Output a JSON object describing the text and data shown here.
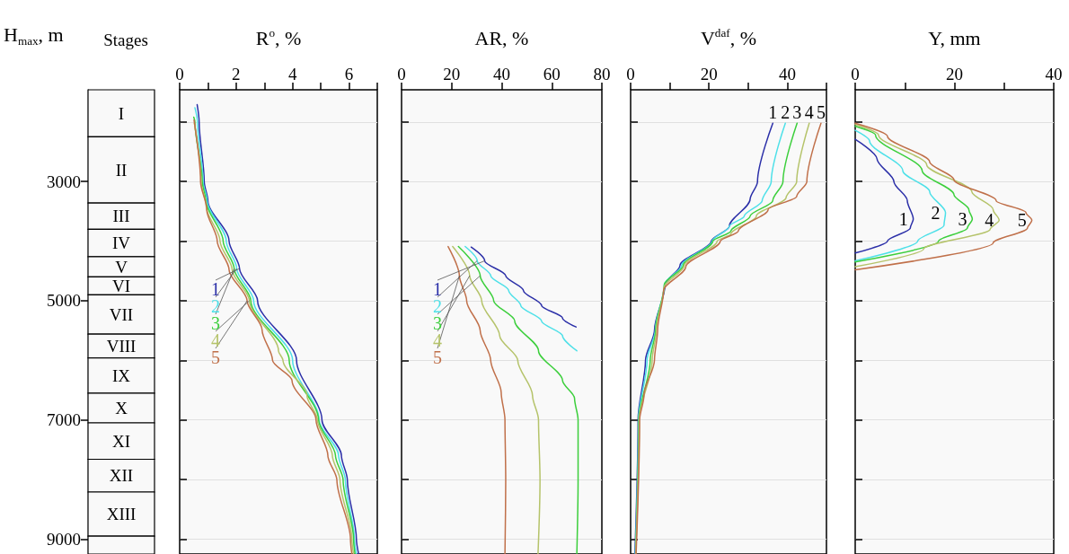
{
  "chart_data": [
    {
      "type": "bar",
      "title": "Stages",
      "ylabel": "H$_{max}$, m",
      "categories": [
        null
      ],
      "ylim": [
        9250,
        1460
      ],
      "yticks": [
        3000,
        5000,
        7000,
        9000
      ],
      "tick_labels": "y",
      "series": [
        {
          "name": "I",
          "color": "#f9f9f9",
          "values": [
            790
          ],
          "base": [
            1460
          ]
        },
        {
          "name": "II",
          "color": "#f9f9f9",
          "values": [
            1110
          ],
          "base": [
            2250
          ]
        },
        {
          "name": "III",
          "color": "#f9f9f9",
          "values": [
            440
          ],
          "base": [
            3360
          ]
        },
        {
          "name": "IV",
          "color": "#f9f9f9",
          "values": [
            460
          ],
          "base": [
            3800
          ]
        },
        {
          "name": "V",
          "color": "#f9f9f9",
          "values": [
            340
          ],
          "base": [
            4260
          ]
        },
        {
          "name": "VI",
          "color": "#f9f9f9",
          "values": [
            300
          ],
          "base": [
            4600
          ]
        },
        {
          "name": "VII",
          "color": "#f9f9f9",
          "values": [
            660
          ],
          "base": [
            4900
          ]
        },
        {
          "name": "VIII",
          "color": "#f9f9f9",
          "values": [
            400
          ],
          "base": [
            5560
          ]
        },
        {
          "name": "IX",
          "color": "#f9f9f9",
          "values": [
            590
          ],
          "base": [
            5960
          ]
        },
        {
          "name": "X",
          "color": "#f9f9f9",
          "values": [
            500
          ],
          "base": [
            6550
          ]
        },
        {
          "name": "XI",
          "color": "#f9f9f9",
          "values": [
            610
          ],
          "base": [
            7050
          ]
        },
        {
          "name": "XII",
          "color": "#f9f9f9",
          "values": [
            550
          ],
          "base": [
            7660
          ]
        },
        {
          "name": "XIII",
          "color": "#f9f9f9",
          "values": [
            740
          ],
          "base": [
            8210
          ]
        },
        {
          "color": "#f9f9f9",
          "values": [
            300
          ],
          "base": [
            8950
          ]
        }
      ]
    },
    {
      "type": "line",
      "xlabel": "R$^{o}$, %",
      "xlim": [
        0,
        7
      ],
      "xticks": [
        0,
        {
          "value": 1,
          "label": null
        },
        2,
        {
          "value": 3,
          "label": null
        },
        4,
        {
          "value": 5,
          "label": null
        },
        6,
        {
          "value": 7,
          "label": null
        }
      ],
      "ylim": [
        9250,
        1460
      ],
      "yticks": [
        2000,
        3000,
        4000,
        5000,
        6000,
        7000,
        8000,
        9000
      ],
      "tick_labels": "x",
      "grid": "y",
      "series": [
        {
          "name": "1",
          "color": "#2b2fa8",
          "x": [
            0.62,
            0.69,
            0.87,
            1.0,
            1.75,
            2.12,
            2.76,
            4.14,
            5.04,
            5.73,
            5.94,
            6.26,
            6.34
          ],
          "values": [
            1710,
            2000,
            3000,
            3320,
            4000,
            4460,
            5000,
            6000,
            7000,
            7600,
            8010,
            9000,
            9250
          ]
        },
        {
          "name": "2",
          "color": "#4de0e8",
          "x": [
            0.54,
            0.63,
            0.83,
            0.97,
            1.65,
            2.02,
            2.62,
            4.0,
            4.94,
            5.63,
            5.87,
            6.19,
            6.26
          ],
          "values": [
            1760,
            2000,
            3000,
            3320,
            4000,
            4460,
            5000,
            6000,
            7000,
            7600,
            8010,
            9000,
            9250
          ]
        },
        {
          "name": "3",
          "color": "#3ccf3c",
          "x": [
            0.5,
            0.54,
            0.8,
            0.93,
            1.54,
            1.93,
            2.52,
            3.88,
            4.92,
            5.52,
            5.79,
            6.16,
            6.21
          ],
          "values": [
            1920,
            2000,
            3000,
            3320,
            4000,
            4460,
            5000,
            6000,
            7000,
            7600,
            8010,
            9000,
            9250
          ]
        },
        {
          "name": "4",
          "color": "#b5c36a",
          "x": [
            0.52,
            0.76,
            0.94,
            1.43,
            1.86,
            2.47,
            3.5,
            3.66,
            4.51,
            4.88,
            5.41,
            5.68,
            6.1,
            6.16
          ],
          "values": [
            2020,
            3000,
            3420,
            4000,
            4480,
            5000,
            5840,
            6000,
            6590,
            7000,
            7600,
            8010,
            9000,
            9250
          ]
        },
        {
          "name": "5",
          "color": "#c0704a",
          "x": [
            0.51,
            0.74,
            0.96,
            1.33,
            1.75,
            2.39,
            2.92,
            3.29,
            3.98,
            4.83,
            5.25,
            5.57,
            6.05,
            6.1
          ],
          "values": [
            1970,
            3000,
            3470,
            4000,
            4480,
            5000,
            5490,
            6000,
            6340,
            7000,
            7600,
            8010,
            9000,
            9250
          ]
        }
      ]
    },
    {
      "type": "line",
      "xlabel": "AR, %",
      "xlim": [
        0,
        80
      ],
      "xticks": [
        0,
        20,
        40,
        60,
        80
      ],
      "ylim": [
        9250,
        1460
      ],
      "yticks": [
        2000,
        3000,
        4000,
        5000,
        6000,
        7000,
        8000,
        9000
      ],
      "tick_labels": "x",
      "grid": "y",
      "series": [
        {
          "name": "1",
          "color": "#2b2fa8",
          "x": [
            27.8,
            33.2,
            41.6,
            48.7,
            55.9,
            64.3,
            69.7
          ],
          "values": [
            4100,
            4330,
            4580,
            4830,
            5080,
            5290,
            5440
          ]
        },
        {
          "name": "2",
          "color": "#4de0e8",
          "x": [
            25.4,
            30.2,
            35.6,
            42.8,
            47.6,
            55.9,
            64.3,
            70.0
          ],
          "values": [
            4090,
            4330,
            4580,
            4830,
            5080,
            5340,
            5590,
            5840
          ]
        },
        {
          "name": "3",
          "color": "#3ccf3c",
          "x": [
            22.7,
            31.4,
            36.8,
            45.2,
            54.7,
            64.3,
            69.1,
            70.5,
            70.5,
            70.0
          ],
          "values": [
            4090,
            4580,
            5000,
            5340,
            5840,
            6340,
            6640,
            7000,
            8010,
            9250
          ]
        },
        {
          "name": "4",
          "color": "#b5c36a",
          "x": [
            20.4,
            27.2,
            32.0,
            39.2,
            46.4,
            52.3,
            54.7,
            55.3,
            54.5
          ],
          "values": [
            4090,
            4580,
            5000,
            5590,
            6000,
            6590,
            7000,
            8010,
            9250
          ]
        },
        {
          "name": "5",
          "color": "#c0704a",
          "x": [
            18.6,
            23.1,
            26.0,
            31.4,
            35.6,
            39.8,
            41.3,
            41.6,
            41.3
          ],
          "values": [
            4090,
            4580,
            5000,
            5500,
            6000,
            6540,
            7000,
            8010,
            9250
          ]
        }
      ]
    },
    {
      "type": "line",
      "xlabel": "V$^{daf}$, %",
      "xlim": [
        0,
        50
      ],
      "xticks": [
        0,
        {
          "value": 10,
          "label": null
        },
        20,
        {
          "value": 30,
          "label": null
        },
        40,
        {
          "value": 50,
          "label": null
        }
      ],
      "ylim": [
        9250,
        1460
      ],
      "yticks": [
        2000,
        3000,
        4000,
        5000,
        6000,
        7000,
        8000,
        9000
      ],
      "tick_labels": "x",
      "grid": "y",
      "series": [
        {
          "name": "1",
          "color": "#2b2fa8",
          "x": [
            36.3,
            32.4,
            30.5,
            25.2,
            20.6,
            12.6,
            8.8,
            6.1,
            3.8,
            1.9,
            1.1
          ],
          "values": [
            2020,
            3000,
            3300,
            3750,
            4000,
            4410,
            4730,
            5490,
            6000,
            7000,
            9250
          ]
        },
        {
          "name": "2",
          "color": "#4de0e8",
          "x": [
            39.5,
            35.9,
            33.6,
            29.0,
            25.2,
            20.8,
            13.0,
            8.6,
            6.3,
            4.2,
            2.0,
            1.2
          ],
          "values": [
            2020,
            3000,
            3320,
            3580,
            3750,
            4000,
            4410,
            4730,
            5490,
            6000,
            7000,
            9250
          ]
        },
        {
          "name": "3",
          "color": "#3ccf3c",
          "x": [
            42.5,
            38.9,
            36.3,
            30.5,
            25.6,
            21.0,
            13.4,
            8.6,
            6.4,
            5.0,
            2.1,
            1.3
          ],
          "values": [
            2020,
            3000,
            3320,
            3580,
            3830,
            4000,
            4410,
            4730,
            5490,
            6000,
            7000,
            9250
          ]
        },
        {
          "name": "4",
          "color": "#b5c36a",
          "x": [
            45.6,
            42.4,
            39.7,
            32.1,
            25.6,
            22.1,
            13.7,
            8.5,
            6.6,
            5.5,
            2.2,
            1.3
          ],
          "values": [
            2020,
            3000,
            3270,
            3580,
            3880,
            4000,
            4410,
            4780,
            5490,
            6000,
            7000,
            9250
          ]
        },
        {
          "name": "5",
          "color": "#c0704a",
          "x": [
            48.6,
            45.0,
            42.4,
            35.1,
            27.5,
            22.9,
            14.1,
            8.4,
            6.9,
            6.1,
            3.4,
            2.3,
            1.4
          ],
          "values": [
            2020,
            3000,
            3250,
            3470,
            3830,
            4000,
            4430,
            4830,
            5490,
            5990,
            6590,
            7000,
            9250
          ]
        }
      ]
    },
    {
      "type": "line",
      "xlabel": "Y, mm",
      "xlim": [
        0,
        40
      ],
      "xticks": [
        0,
        {
          "value": 10,
          "label": null
        },
        20,
        {
          "value": 30,
          "label": null
        },
        40
      ],
      "ylim": [
        9250,
        1460
      ],
      "yticks": [
        2000,
        3000,
        4000,
        5000,
        6000,
        7000,
        8000,
        9000
      ],
      "tick_labels": "x",
      "grid": "y",
      "series": [
        {
          "name": "1",
          "color": "#2b2fa8",
          "x": [
            0,
            4.4,
            7.8,
            10.5,
            11.7,
            11.1,
            6.5,
            0
          ],
          "values": [
            2290,
            2620,
            3000,
            3320,
            3630,
            3780,
            4000,
            4200
          ]
        },
        {
          "name": "2",
          "color": "#4de0e8",
          "x": [
            0,
            2.9,
            9.6,
            15.0,
            18.2,
            17.9,
            12.6,
            0
          ],
          "values": [
            2140,
            2320,
            2820,
            3170,
            3520,
            3730,
            4000,
            4330
          ]
        },
        {
          "name": "3",
          "color": "#3ccf3c",
          "x": [
            0,
            4.1,
            13.5,
            19.9,
            22.9,
            23.6,
            22.6,
            16.8,
            0
          ],
          "values": [
            2070,
            2220,
            2820,
            3220,
            3470,
            3630,
            3780,
            4000,
            4350
          ]
        },
        {
          "name": "4",
          "color": "#b5c36a",
          "x": [
            0,
            4.7,
            14.4,
            23.5,
            27.8,
            29.0,
            27.2,
            13.8,
            0
          ],
          "values": [
            2040,
            2220,
            2720,
            3170,
            3470,
            3650,
            3800,
            4130,
            4430
          ]
        },
        {
          "name": "5",
          "color": "#c0704a",
          "x": [
            0,
            6.5,
            15.0,
            19.9,
            28.4,
            34.4,
            35.6,
            34.7,
            27.8,
            0
          ],
          "values": [
            2020,
            2240,
            2670,
            2970,
            3320,
            3520,
            3650,
            3780,
            4030,
            4480
          ]
        }
      ]
    }
  ]
}
